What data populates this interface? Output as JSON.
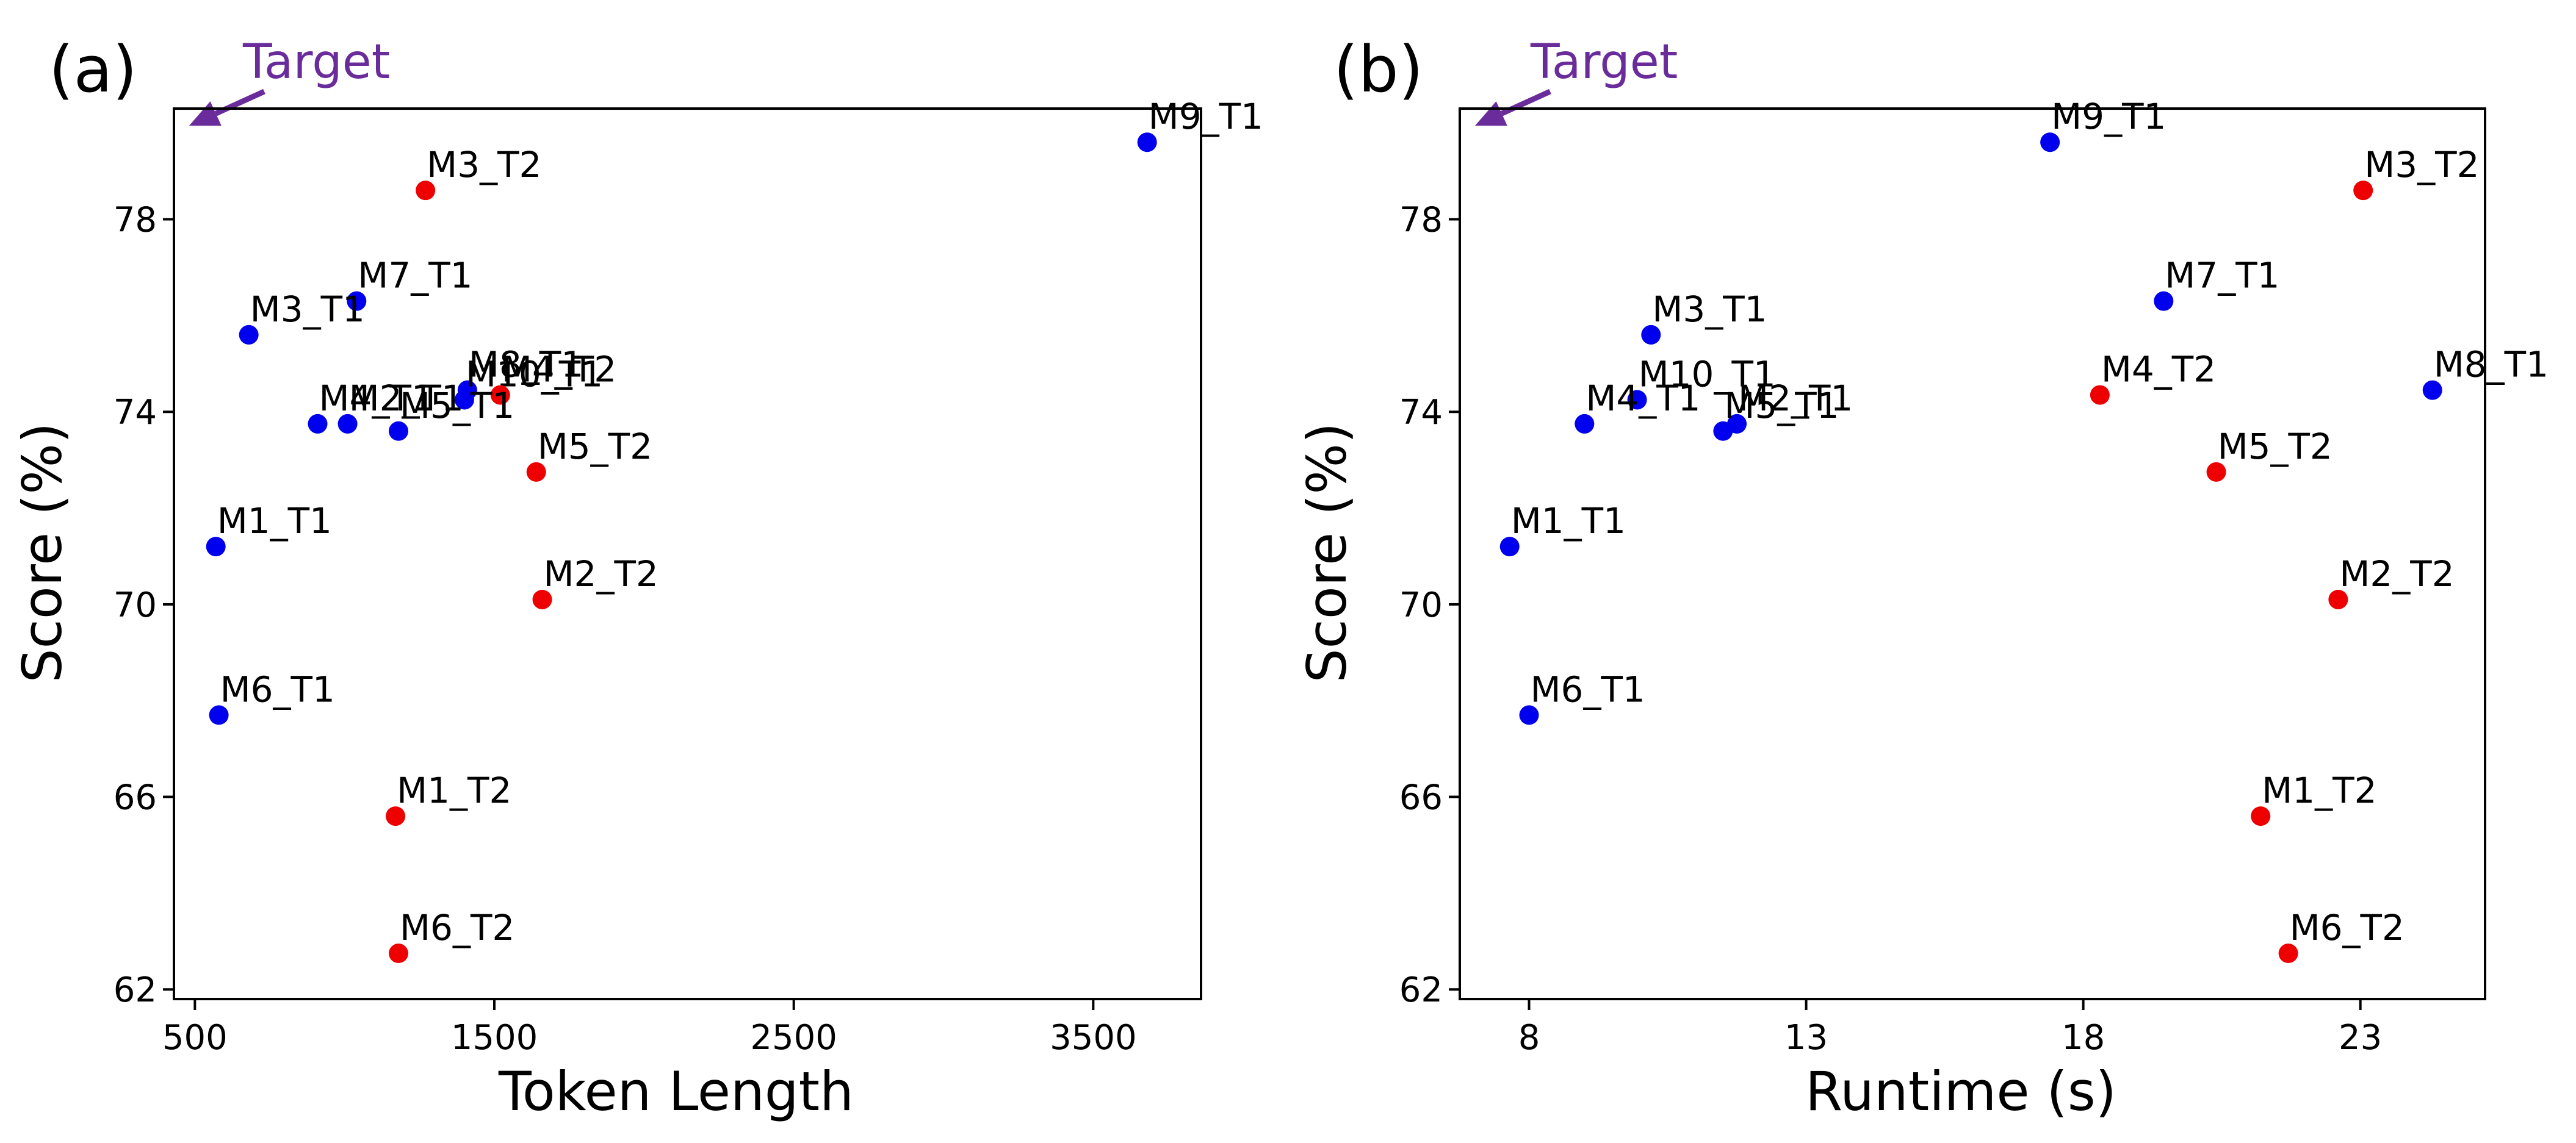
{
  "colors": {
    "T1": "#0000ee",
    "T2": "#ee0000",
    "target": "#6a2c9b"
  },
  "chart_data": [
    {
      "type": "scatter",
      "panel_label": "(a)",
      "target_label": "Target",
      "xlabel": "Token Length",
      "ylabel": "Score (%)",
      "xlim": [
        430,
        3860
      ],
      "ylim": [
        61.8,
        80.3
      ],
      "xticks": [
        500,
        1500,
        2500,
        3500
      ],
      "yticks": [
        62,
        66,
        70,
        74,
        78
      ],
      "points": [
        {
          "label": "M9_T1",
          "x": 3680,
          "y": 79.6,
          "group": "T1"
        },
        {
          "label": "M3_T2",
          "x": 1270,
          "y": 78.6,
          "group": "T2"
        },
        {
          "label": "M7_T1",
          "x": 1040,
          "y": 76.3,
          "group": "T1"
        },
        {
          "label": "M3_T1",
          "x": 680,
          "y": 75.6,
          "group": "T1"
        },
        {
          "label": "M8_T1",
          "x": 1410,
          "y": 74.45,
          "group": "T1"
        },
        {
          "label": "M10_T1",
          "x": 1400,
          "y": 74.25,
          "group": "T1"
        },
        {
          "label": "M4_T2",
          "x": 1520,
          "y": 74.35,
          "group": "T2"
        },
        {
          "label": "M4_T1",
          "x": 910,
          "y": 73.75,
          "group": "T1"
        },
        {
          "label": "M2_T1",
          "x": 1010,
          "y": 73.75,
          "group": "T1"
        },
        {
          "label": "M5_T1",
          "x": 1180,
          "y": 73.6,
          "group": "T1"
        },
        {
          "label": "M5_T2",
          "x": 1640,
          "y": 72.75,
          "group": "T2"
        },
        {
          "label": "M1_T1",
          "x": 570,
          "y": 71.2,
          "group": "T1"
        },
        {
          "label": "M2_T2",
          "x": 1660,
          "y": 70.1,
          "group": "T2"
        },
        {
          "label": "M6_T1",
          "x": 580,
          "y": 67.7,
          "group": "T1"
        },
        {
          "label": "M1_T2",
          "x": 1170,
          "y": 65.6,
          "group": "T2"
        },
        {
          "label": "M6_T2",
          "x": 1180,
          "y": 62.75,
          "group": "T2"
        }
      ]
    },
    {
      "type": "scatter",
      "panel_label": "(b)",
      "target_label": "Target",
      "xlabel": "Runtime (s)",
      "ylabel": "Score (%)",
      "xlim": [
        6.75,
        25.25
      ],
      "ylim": [
        61.8,
        80.3
      ],
      "xticks": [
        8,
        13,
        18,
        23
      ],
      "yticks": [
        62,
        66,
        70,
        74,
        78
      ],
      "points": [
        {
          "label": "M9_T1",
          "x": 17.4,
          "y": 79.6,
          "group": "T1"
        },
        {
          "label": "M3_T2",
          "x": 23.05,
          "y": 78.6,
          "group": "T2"
        },
        {
          "label": "M7_T1",
          "x": 19.45,
          "y": 76.3,
          "group": "T1"
        },
        {
          "label": "M3_T1",
          "x": 10.2,
          "y": 75.6,
          "group": "T1"
        },
        {
          "label": "M8_T1",
          "x": 24.3,
          "y": 74.45,
          "group": "T1"
        },
        {
          "label": "M4_T2",
          "x": 18.3,
          "y": 74.35,
          "group": "T2"
        },
        {
          "label": "M10_T1",
          "x": 9.95,
          "y": 74.25,
          "group": "T1"
        },
        {
          "label": "M4_T1",
          "x": 9.0,
          "y": 73.75,
          "group": "T1"
        },
        {
          "label": "M2_T1",
          "x": 11.75,
          "y": 73.75,
          "group": "T1"
        },
        {
          "label": "M5_T1",
          "x": 11.5,
          "y": 73.6,
          "group": "T1"
        },
        {
          "label": "M5_T2",
          "x": 20.4,
          "y": 72.75,
          "group": "T2"
        },
        {
          "label": "M1_T1",
          "x": 7.65,
          "y": 71.2,
          "group": "T1"
        },
        {
          "label": "M2_T2",
          "x": 22.6,
          "y": 70.1,
          "group": "T2"
        },
        {
          "label": "M6_T1",
          "x": 8.0,
          "y": 67.7,
          "group": "T1"
        },
        {
          "label": "M1_T2",
          "x": 21.2,
          "y": 65.6,
          "group": "T2"
        },
        {
          "label": "M6_T2",
          "x": 21.7,
          "y": 62.75,
          "group": "T2"
        }
      ]
    }
  ]
}
